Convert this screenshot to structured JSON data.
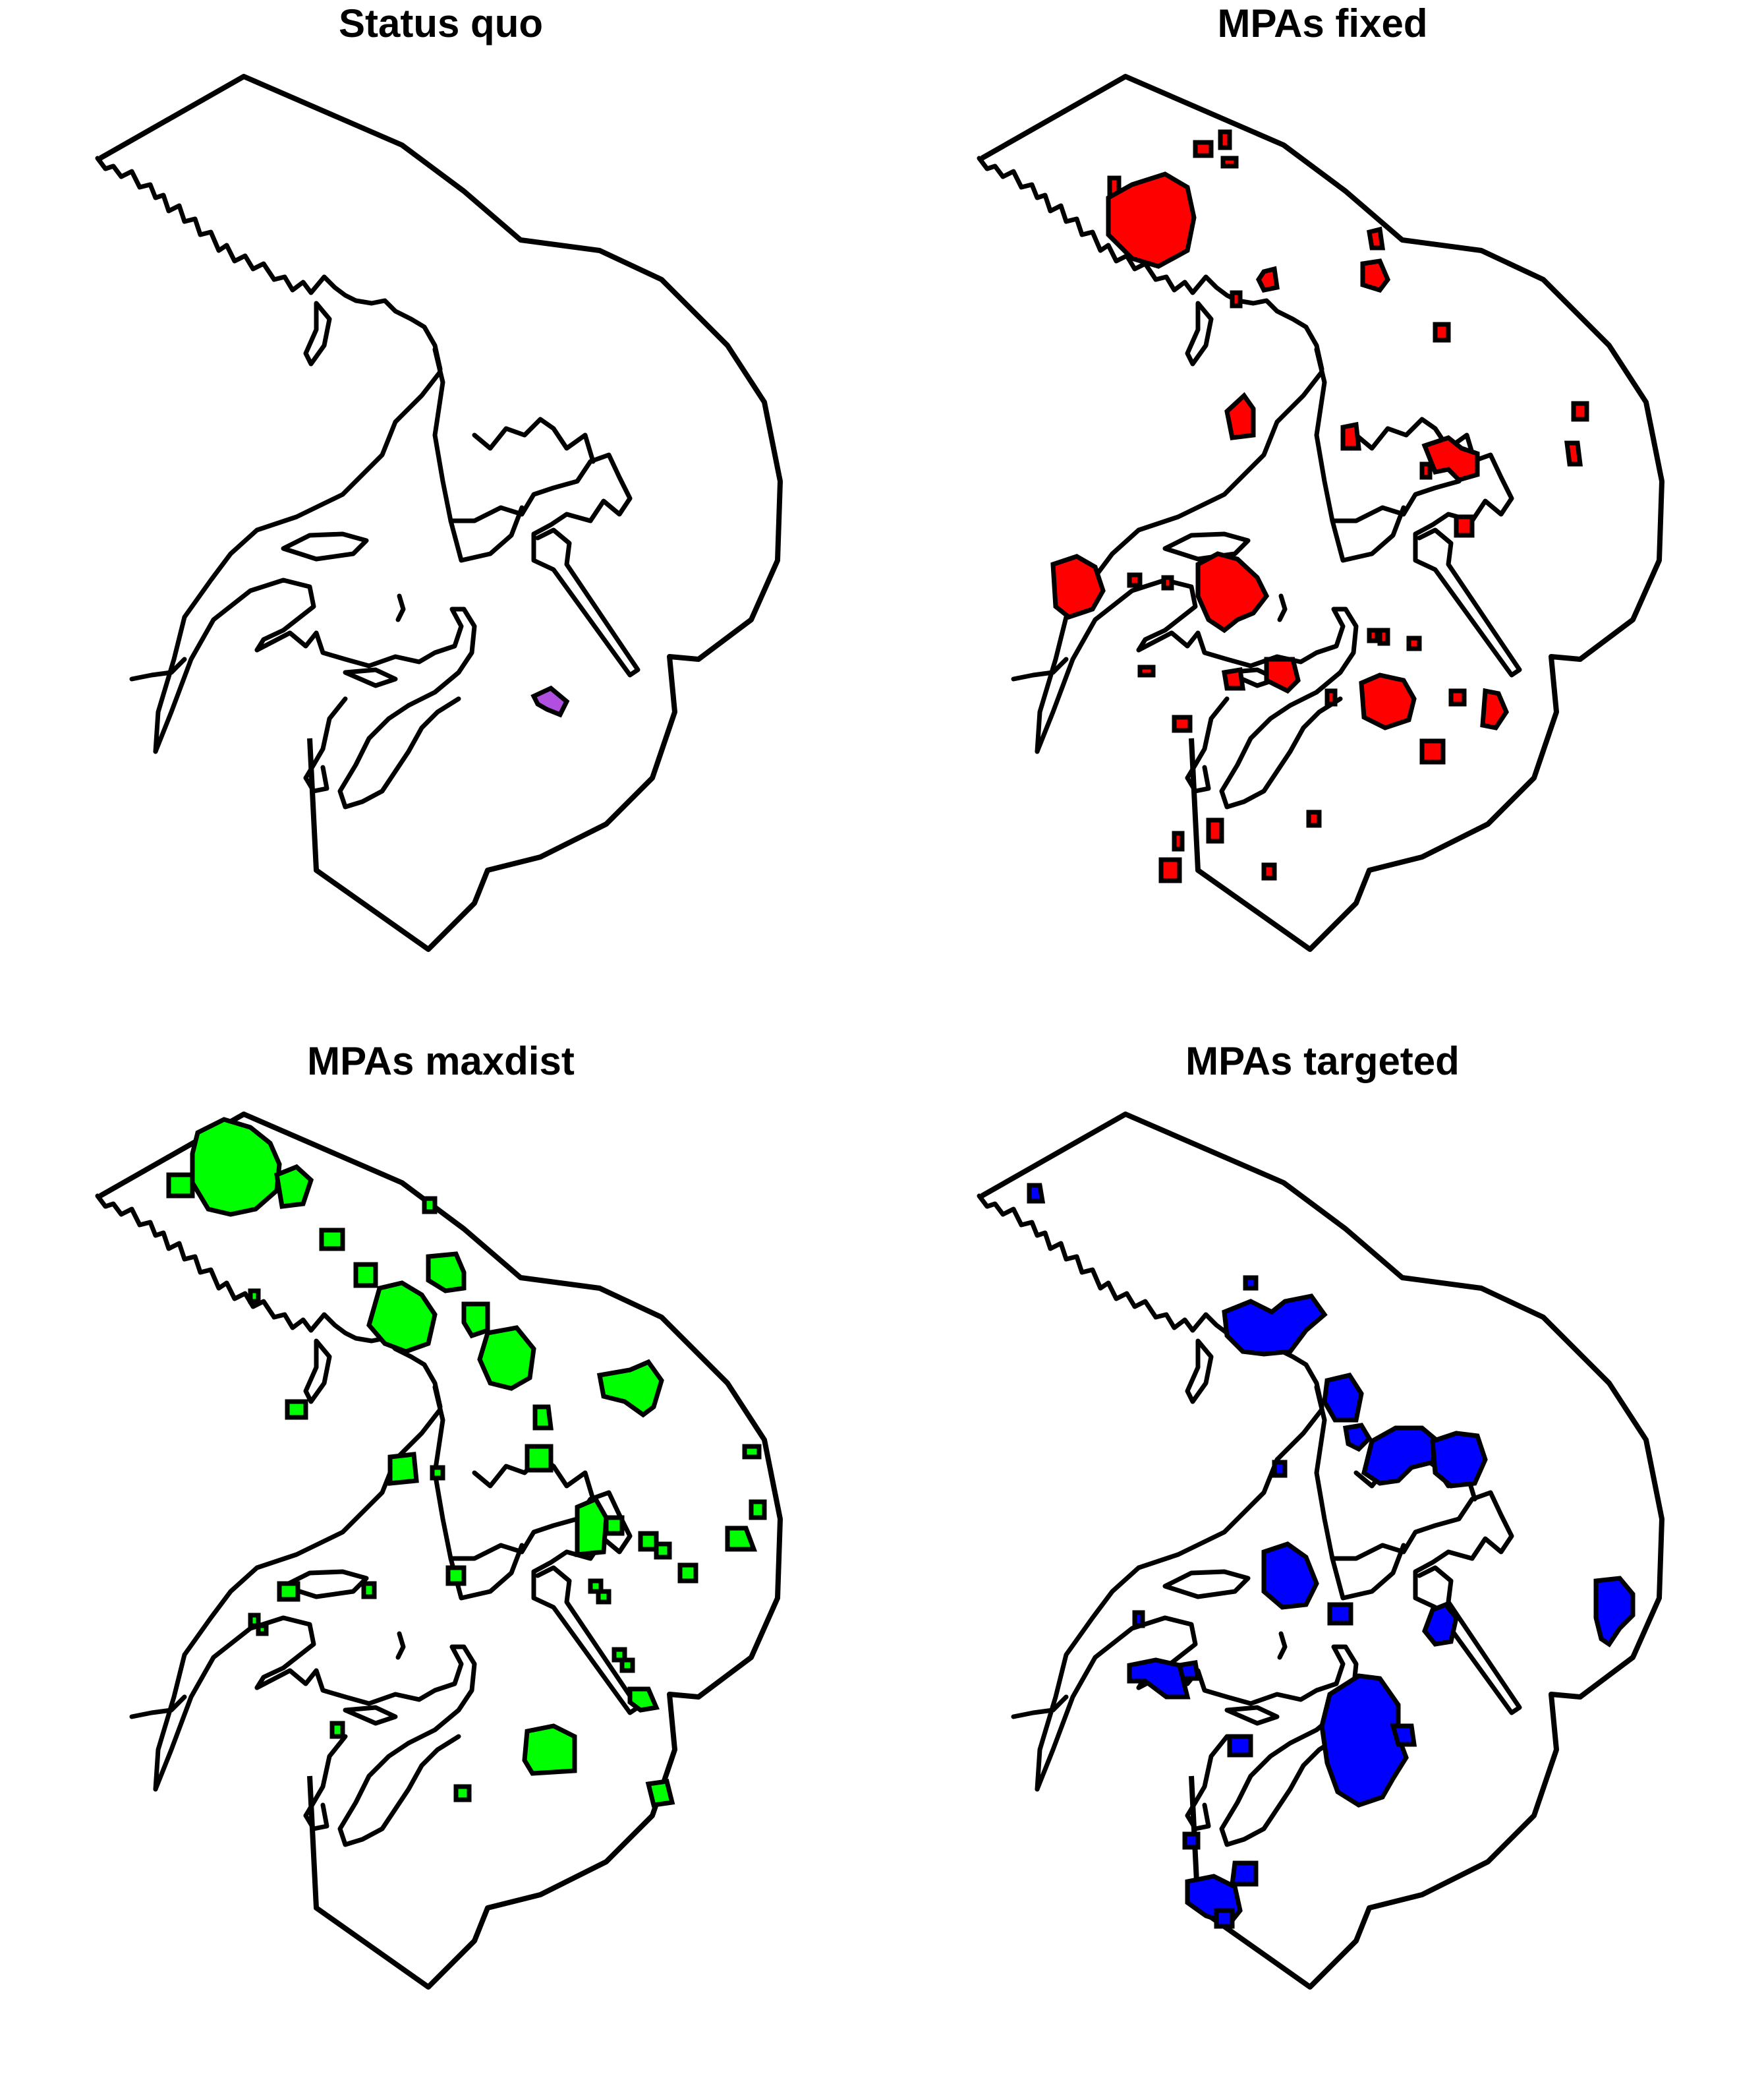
{
  "panels": [
    {
      "title": "Status quo",
      "fill": "#b14fe0"
    },
    {
      "title": "MPAs fixed",
      "fill": "#ff0000"
    },
    {
      "title": "MPAs maxdist",
      "fill": "#00ff00"
    },
    {
      "title": "MPAs targeted",
      "fill": "#0000ff"
    }
  ]
}
